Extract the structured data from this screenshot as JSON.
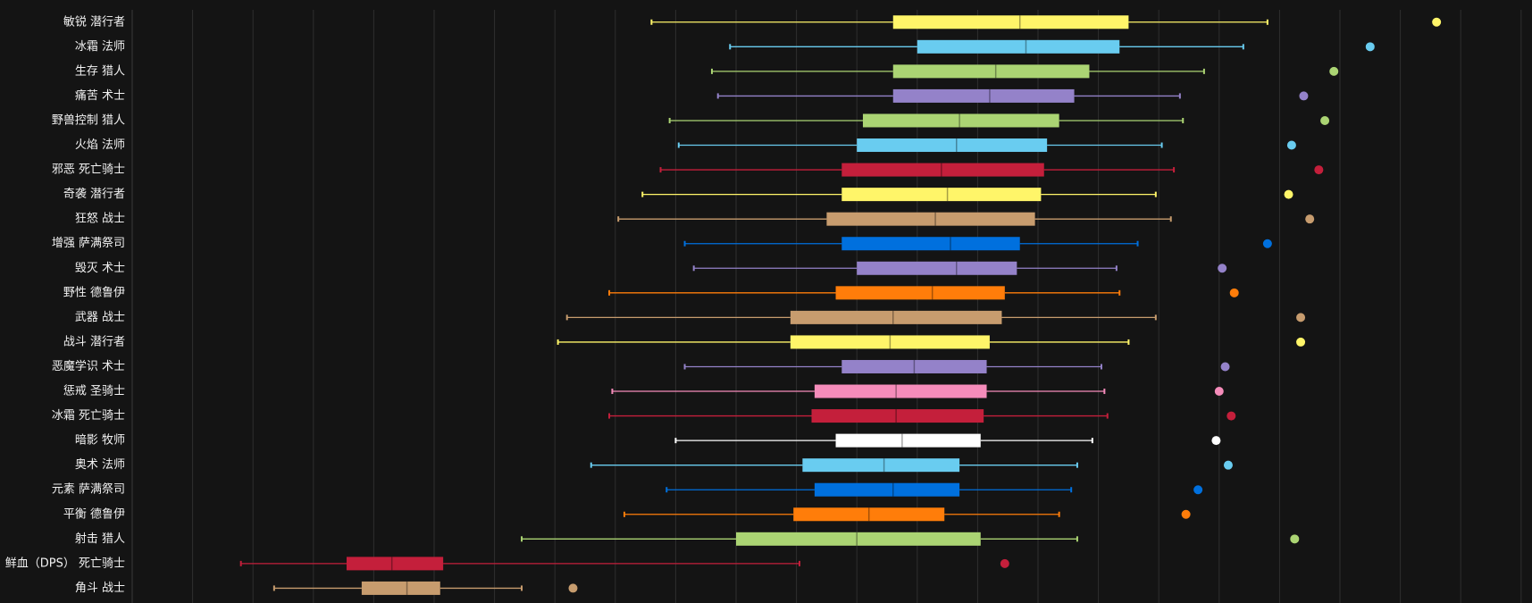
{
  "chart_data": {
    "type": "boxplot",
    "title": "",
    "xlabel": "",
    "ylabel": "",
    "grid": true,
    "xlim": [
      0,
      23.5
    ],
    "categories": [
      "敏锐 潜行者",
      "冰霜 法师",
      "生存 猎人",
      "痛苦 术士",
      "野兽控制 猎人",
      "火焰 法师",
      "邪恶 死亡骑士",
      "奇袭 潜行者",
      "狂怒 战士",
      "增强 萨满祭司",
      "毁灭 术士",
      "野性 德鲁伊",
      "武器 战士",
      "战斗 潜行者",
      "恶魔学识 术士",
      "惩戒 圣骑士",
      "冰霜 死亡骑士",
      "暗影 牧师",
      "奥术 法师",
      "元素 萨满祭司",
      "平衡 德鲁伊",
      "射击 猎人",
      "鲜血（DPS） 死亡骑士",
      "角斗 战士"
    ],
    "series": [
      {
        "name": "敏锐 潜行者",
        "min": 8.6,
        "q1": 12.6,
        "median": 14.7,
        "q3": 16.5,
        "max": 18.8,
        "outlier": 21.6,
        "color": "#FFF569"
      },
      {
        "name": "冰霜 法师",
        "min": 9.9,
        "q1": 13.0,
        "median": 14.8,
        "q3": 16.35,
        "max": 18.4,
        "outlier": 20.5,
        "color": "#69CCF0"
      },
      {
        "name": "生存 猎人",
        "min": 9.6,
        "q1": 12.6,
        "median": 14.3,
        "q3": 15.85,
        "max": 17.75,
        "outlier": 19.9,
        "color": "#ABD473"
      },
      {
        "name": "痛苦 术士",
        "min": 9.7,
        "q1": 12.6,
        "median": 14.2,
        "q3": 15.6,
        "max": 17.35,
        "outlier": 19.4,
        "color": "#9482C9"
      },
      {
        "name": "野兽控制 猎人",
        "min": 8.9,
        "q1": 12.1,
        "median": 13.7,
        "q3": 15.35,
        "max": 17.4,
        "outlier": 19.75,
        "color": "#ABD473"
      },
      {
        "name": "火焰 法师",
        "min": 9.05,
        "q1": 12.0,
        "median": 13.65,
        "q3": 15.15,
        "max": 17.05,
        "outlier": 19.2,
        "color": "#69CCF0"
      },
      {
        "name": "邪恶 死亡骑士",
        "min": 8.75,
        "q1": 11.75,
        "median": 13.4,
        "q3": 15.1,
        "max": 17.25,
        "outlier": 19.65,
        "color": "#C41F3B"
      },
      {
        "name": "奇袭 潜行者",
        "min": 8.45,
        "q1": 11.75,
        "median": 13.5,
        "q3": 15.05,
        "max": 16.95,
        "outlier": 19.15,
        "color": "#FFF569"
      },
      {
        "name": "狂怒 战士",
        "min": 8.05,
        "q1": 11.5,
        "median": 13.3,
        "q3": 14.95,
        "max": 17.2,
        "outlier": 19.5,
        "color": "#C79C6E"
      },
      {
        "name": "增强 萨满祭司",
        "min": 9.15,
        "q1": 11.75,
        "median": 13.55,
        "q3": 14.7,
        "max": 16.65,
        "outlier": 18.8,
        "color": "#0070DE"
      },
      {
        "name": "毁灭 术士",
        "min": 9.3,
        "q1": 12.0,
        "median": 13.65,
        "q3": 14.65,
        "max": 16.3,
        "outlier": 18.05,
        "color": "#9482C9"
      },
      {
        "name": "野性 德鲁伊",
        "min": 7.9,
        "q1": 11.65,
        "median": 13.25,
        "q3": 14.45,
        "max": 16.35,
        "outlier": 18.25,
        "color": "#FF7D0A"
      },
      {
        "name": "武器 战士",
        "min": 7.2,
        "q1": 10.9,
        "median": 12.6,
        "q3": 14.4,
        "max": 16.95,
        "outlier": 19.35,
        "color": "#C79C6E"
      },
      {
        "name": "战斗 潜行者",
        "min": 7.05,
        "q1": 10.9,
        "median": 12.55,
        "q3": 14.2,
        "max": 16.5,
        "outlier": 19.35,
        "color": "#FFF569"
      },
      {
        "name": "恶魔学识 术士",
        "min": 9.15,
        "q1": 11.75,
        "median": 12.95,
        "q3": 14.15,
        "max": 16.05,
        "outlier": 18.1,
        "color": "#9482C9"
      },
      {
        "name": "惩戒 圣骑士",
        "min": 7.95,
        "q1": 11.3,
        "median": 12.65,
        "q3": 14.15,
        "max": 16.1,
        "outlier": 18.0,
        "color": "#F58CBA"
      },
      {
        "name": "冰霜 死亡骑士",
        "min": 7.9,
        "q1": 11.25,
        "median": 12.65,
        "q3": 14.1,
        "max": 16.15,
        "outlier": 18.2,
        "color": "#C41F3B"
      },
      {
        "name": "暗影 牧师",
        "min": 9.0,
        "q1": 11.65,
        "median": 12.75,
        "q3": 14.05,
        "max": 15.9,
        "outlier": 17.95,
        "color": "#FFFFFF"
      },
      {
        "name": "奥术 法师",
        "min": 7.6,
        "q1": 11.1,
        "median": 12.45,
        "q3": 13.7,
        "max": 15.65,
        "outlier": 18.15,
        "color": "#69CCF0"
      },
      {
        "name": "元素 萨满祭司",
        "min": 8.85,
        "q1": 11.3,
        "median": 12.6,
        "q3": 13.7,
        "max": 15.55,
        "outlier": 17.65,
        "color": "#0070DE"
      },
      {
        "name": "平衡 德鲁伊",
        "min": 8.15,
        "q1": 10.95,
        "median": 12.2,
        "q3": 13.45,
        "max": 15.35,
        "outlier": 17.45,
        "color": "#FF7D0A"
      },
      {
        "name": "射击 猎人",
        "min": 6.45,
        "q1": 10.0,
        "median": 12.0,
        "q3": 14.05,
        "max": 15.65,
        "outlier": 19.25,
        "color": "#ABD473"
      },
      {
        "name": "鲜血（DPS） 死亡骑士",
        "min": 1.8,
        "q1": 3.55,
        "median": 4.3,
        "q3": 5.15,
        "max": 11.05,
        "outlier": 14.45,
        "color": "#C41F3B"
      },
      {
        "name": "角斗 战士",
        "min": 2.35,
        "q1": 3.8,
        "median": 4.55,
        "q3": 5.1,
        "max": 6.45,
        "outlier": 7.3,
        "color": "#C79C6E"
      }
    ]
  }
}
